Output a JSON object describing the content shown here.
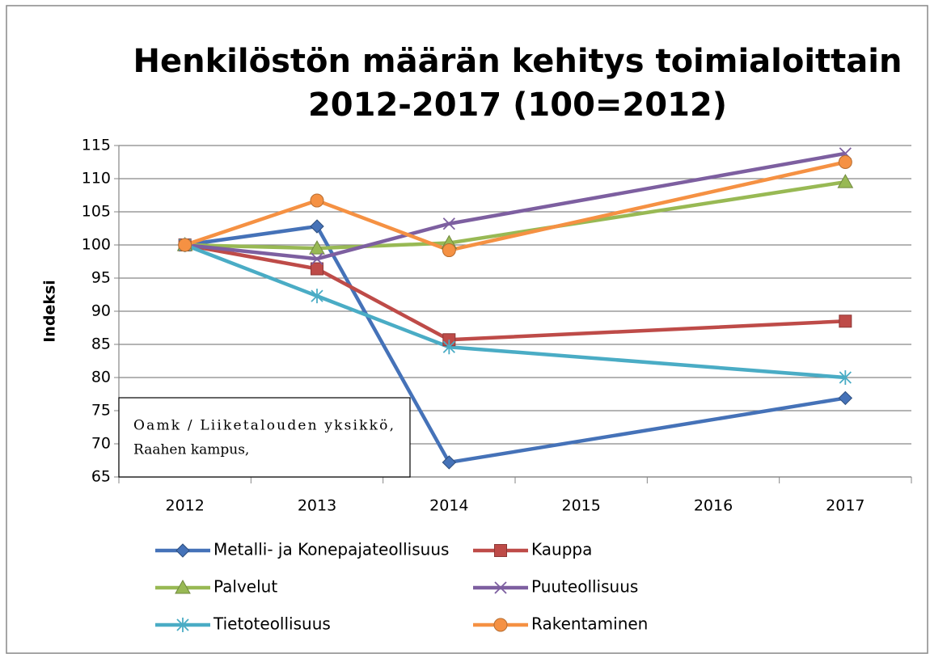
{
  "chart_data": {
    "type": "line",
    "title": [
      "Henkilöstön määrän kehitys toimialoittain",
      "2012-2017 (100=2012)"
    ],
    "y_label": "Indeksi",
    "annotation": [
      "Oamk / Liiketalouden yksikkö,",
      "Raahen kampus,"
    ],
    "x": [
      2012,
      2013,
      2014,
      2017
    ],
    "xlim": [
      2011.5,
      2017.5
    ],
    "xticks": [
      2012,
      2013,
      2014,
      2015,
      2016,
      2017
    ],
    "ylim": [
      65,
      115
    ],
    "yticks": [
      65,
      70,
      75,
      80,
      85,
      90,
      95,
      100,
      105,
      110,
      115
    ],
    "grid": true,
    "legend": "bottom",
    "series": [
      {
        "name": "Metalli- ja Konepajateollisuus",
        "color": "#4572b8",
        "marker": "diamond",
        "values": [
          100,
          102.8,
          67.2,
          76.9
        ]
      },
      {
        "name": "Kauppa",
        "color": "#be4b48",
        "marker": "square",
        "values": [
          100,
          96.4,
          85.7,
          88.5
        ]
      },
      {
        "name": "Palvelut",
        "color": "#98b954",
        "marker": "triangle",
        "values": [
          100,
          99.5,
          100.3,
          109.5
        ]
      },
      {
        "name": "Puuteollisuus",
        "color": "#7d5fa0",
        "marker": "x",
        "values": [
          100,
          97.9,
          103.2,
          113.8
        ]
      },
      {
        "name": "Tietoteollisuus",
        "color": "#4aacc5",
        "marker": "star",
        "values": [
          100,
          92.3,
          84.6,
          80
        ]
      },
      {
        "name": "Rakentaminen",
        "color": "#f59143",
        "marker": "circle",
        "values": [
          100,
          106.7,
          99.2,
          112.5
        ]
      }
    ]
  }
}
